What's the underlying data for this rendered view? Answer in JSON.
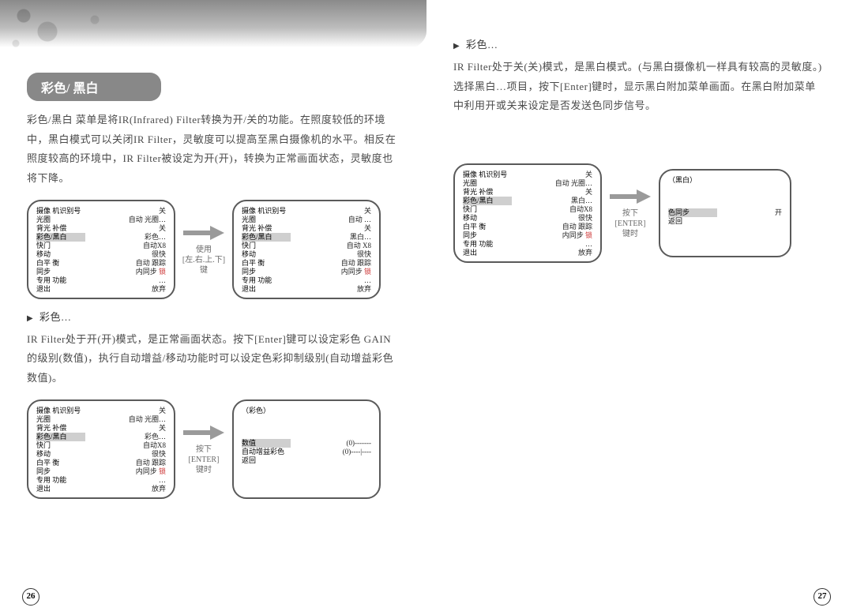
{
  "left": {
    "header": "彩色/ 黑白",
    "para1": "彩色/黑白 菜单是将IR(Infrared) Filter转换为开/关的功能。在照度较低的环境中，黑白模式可以关闭IR Filter，灵敏度可以提高至黑白摄像机的水平。相反在照度较高的环境中，IR Filter被设定为开(开)，转换为正常画面状态，灵敏度也将下降。",
    "arrow1_l1": "使用",
    "arrow1_l2": "[左.右.上.下]",
    "arrow1_l3": "键",
    "sub1": " 彩色…",
    "para2": "IR Filter处于开(开)模式，是正常画面状态。按下[Enter]键可以设定彩色 GAIN的级别(数值)，执行自动增益/移动功能时可以设定色彩抑制级别(自动增益彩色数值)。",
    "arrow2_l1": "按下",
    "arrow2_l2": "[ENTER]",
    "arrow2_l3": "键时",
    "page_num": "26",
    "menuA": {
      "rows": [
        {
          "k": "摄像 机识别号",
          "v": "关"
        },
        {
          "k": "光圈",
          "v": "自动 光圈…"
        },
        {
          "k": "背光 补偿",
          "v": "关"
        },
        {
          "k": "彩色/黑白",
          "v": "彩色…",
          "hl": true
        },
        {
          "k": "快门",
          "v": "自动X8"
        },
        {
          "k": "移动",
          "v": "很快"
        },
        {
          "k": "白平 衡",
          "v": "自动 跟踪"
        },
        {
          "k": "同步",
          "v": "内同步",
          "red": " 锁"
        },
        {
          "k": "专用 功能",
          "v": "…"
        },
        {
          "k": "退出",
          "v": "放弃"
        }
      ]
    },
    "menuB": {
      "rows": [
        {
          "k": "摄像 机识别号",
          "v": "关"
        },
        {
          "k": "光圈",
          "v": "自动 …"
        },
        {
          "k": "背光 补偿",
          "v": "关"
        },
        {
          "k": "彩色/黑白",
          "v": "黑白…",
          "hl": true
        },
        {
          "k": "快门",
          "v": "自动 X8"
        },
        {
          "k": "移动",
          "v": "很快"
        },
        {
          "k": "白平 衡",
          "v": "自动 跟踪"
        },
        {
          "k": "同步",
          "v": "内同步",
          "red": " 锁"
        },
        {
          "k": "专用 功能",
          "v": "…"
        },
        {
          "k": "退出",
          "v": "放弃"
        }
      ]
    },
    "menuC": {
      "rows": [
        {
          "k": "摄像 机识别号",
          "v": "关"
        },
        {
          "k": "光圈",
          "v": "自动 光圈…"
        },
        {
          "k": "背光 补偿",
          "v": "关"
        },
        {
          "k": "彩色/黑白",
          "v": "彩色…",
          "hl": true
        },
        {
          "k": "快门",
          "v": "自动X8"
        },
        {
          "k": "移动",
          "v": "很快"
        },
        {
          "k": "白平 衡",
          "v": "自动 跟踪"
        },
        {
          "k": "同步",
          "v": "内同步",
          "red": " 锁"
        },
        {
          "k": "专用 功能",
          "v": "…"
        },
        {
          "k": "退出",
          "v": "放弃"
        }
      ]
    },
    "menuD": {
      "title": "（彩色）",
      "rows": [
        {
          "k": "数值",
          "v": "(0)-------",
          "hl": true
        },
        {
          "k": "自动增益彩色",
          "v": "(0)----|----"
        },
        {
          "k": "返回",
          "v": ""
        }
      ]
    }
  },
  "right": {
    "sub1": " 彩色…",
    "para1": "IR Filter处于关(关)模式，是黑白模式。(与黑白摄像机一样具有较高的灵敏度。) 选择黑白…项目，按下[Enter]键时，显示黑白附加菜单画面。在黑白附加菜单中利用开或关来设定是否发送色同步信号。",
    "arrow1_l1": "按下",
    "arrow1_l2": "[ENTER]",
    "arrow1_l3": "键时",
    "page_num": "27",
    "menuA": {
      "rows": [
        {
          "k": "摄像 机识别号",
          "v": "关"
        },
        {
          "k": "光圈",
          "v": "自动 光圈…"
        },
        {
          "k": "背光 补偿",
          "v": "关"
        },
        {
          "k": "彩色/黑白",
          "v": "黑白…",
          "hl": true
        },
        {
          "k": "快门",
          "v": "自动X8"
        },
        {
          "k": "移动",
          "v": "很快"
        },
        {
          "k": "白平 衡",
          "v": "自动 跟踪"
        },
        {
          "k": "同步",
          "v": "内同步",
          "red": " 锁"
        },
        {
          "k": "专用 功能",
          "v": "…"
        },
        {
          "k": "退出",
          "v": "放弃"
        }
      ]
    },
    "menuB": {
      "title": "（黑白）",
      "rows": [
        {
          "k": "色同步",
          "v": "开",
          "hl": true
        },
        {
          "k": "返回",
          "v": ""
        }
      ]
    }
  }
}
